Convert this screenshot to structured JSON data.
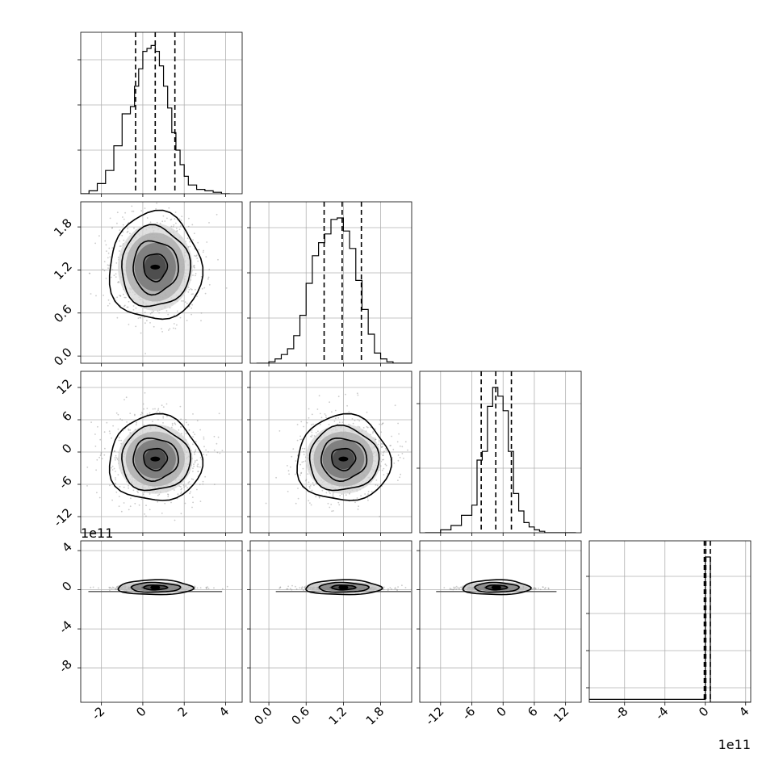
{
  "chart_data": {
    "type": "corner",
    "parameters": 4,
    "grid": true,
    "quantile_lines": "dashed",
    "histograms": [
      {
        "param": 0,
        "quantiles": [
          -0.35,
          0.6,
          1.55
        ],
        "bins_x": [
          -3.0,
          -2.6,
          -2.2,
          -1.8,
          -1.4,
          -1.0,
          -0.6,
          -0.4,
          -0.2,
          0.0,
          0.2,
          0.4,
          0.6,
          0.8,
          1.0,
          1.2,
          1.4,
          1.6,
          1.8,
          2.0,
          2.2,
          2.6,
          3.0,
          3.4,
          3.8,
          4.2
        ],
        "heights": [
          0.0,
          0.02,
          0.07,
          0.16,
          0.33,
          0.55,
          0.6,
          0.74,
          0.86,
          0.98,
          1.0,
          1.02,
          0.98,
          0.88,
          0.74,
          0.59,
          0.42,
          0.3,
          0.2,
          0.12,
          0.06,
          0.03,
          0.02,
          0.01,
          0.0
        ]
      },
      {
        "param": 1,
        "quantiles": [
          0.89,
          1.18,
          1.49
        ],
        "bins_x": [
          -0.2,
          0.0,
          0.1,
          0.2,
          0.3,
          0.4,
          0.5,
          0.6,
          0.7,
          0.8,
          0.9,
          1.0,
          1.1,
          1.2,
          1.3,
          1.4,
          1.5,
          1.6,
          1.7,
          1.8,
          1.9,
          2.0,
          2.1,
          2.3
        ],
        "heights": [
          0.0,
          0.01,
          0.03,
          0.06,
          0.1,
          0.19,
          0.33,
          0.55,
          0.74,
          0.83,
          0.89,
          0.99,
          1.0,
          0.91,
          0.79,
          0.57,
          0.37,
          0.2,
          0.07,
          0.03,
          0.01,
          0.0,
          0.0
        ]
      },
      {
        "param": 2,
        "quantiles": [
          -4.2,
          -1.4,
          1.6
        ],
        "bins_x": [
          -15,
          -12,
          -10,
          -8,
          -6,
          -5,
          -4,
          -3,
          -2,
          -1,
          0,
          1,
          2,
          3,
          4,
          5,
          6,
          7,
          8,
          10,
          12,
          14
        ],
        "heights": [
          0.0,
          0.02,
          0.05,
          0.12,
          0.19,
          0.5,
          0.56,
          0.87,
          1.0,
          0.94,
          0.84,
          0.56,
          0.27,
          0.15,
          0.07,
          0.04,
          0.02,
          0.01,
          0.0,
          0.0,
          0.0
        ]
      },
      {
        "param": 3,
        "quantiles": [
          -0.1,
          0.05,
          0.5
        ],
        "bins_x": [
          -11.5,
          0.0,
          0.5,
          4.5
        ],
        "heights": [
          0.02,
          1.0,
          0.0
        ]
      }
    ],
    "axes": {
      "x_ranges": [
        [
          -3.0,
          4.8
        ],
        [
          -0.3,
          2.3
        ],
        [
          -16,
          15
        ],
        [
          -11.5,
          4.5
        ]
      ],
      "y_ranges": [
        null,
        [
          -0.1,
          2.15
        ],
        [
          -15,
          15
        ],
        [
          -11.5,
          5
        ]
      ],
      "x_ticks": [
        [
          "-2",
          "0",
          "2",
          "4"
        ],
        [
          "0.0",
          "0.6",
          "1.2",
          "1.8"
        ],
        [
          "-12",
          "-6",
          "0",
          "6",
          "12"
        ],
        [
          "-8",
          "-4",
          "0",
          "4"
        ]
      ],
      "y_ticks": [
        [],
        [
          "0.0",
          "0.6",
          "1.2",
          "1.8"
        ],
        [
          "-12",
          "-6",
          "0",
          "6",
          "12"
        ],
        [
          "-8",
          "-4",
          "0",
          "4"
        ]
      ],
      "offset_labels": {
        "left_row_3": "1e11",
        "bottom_col_3": "1e11"
      }
    },
    "pairs": [
      {
        "row": 1,
        "col": 0,
        "center": [
          0.6,
          1.24
        ],
        "sigma": [
          0.95,
          0.32
        ]
      },
      {
        "row": 2,
        "col": 0,
        "center": [
          0.6,
          -1.3
        ],
        "sigma": [
          0.95,
          3.4
        ]
      },
      {
        "row": 2,
        "col": 1,
        "center": [
          1.2,
          -1.3
        ],
        "sigma": [
          0.32,
          3.4
        ]
      },
      {
        "row": 3,
        "col": 0,
        "center": [
          0.6,
          0.15
        ],
        "sigma": [
          0.95,
          0.25
        ]
      },
      {
        "row": 3,
        "col": 1,
        "center": [
          1.2,
          0.15
        ],
        "sigma": [
          0.32,
          0.25
        ]
      },
      {
        "row": 3,
        "col": 2,
        "center": [
          -1.3,
          0.15
        ],
        "sigma": [
          3.4,
          0.25
        ]
      }
    ]
  }
}
